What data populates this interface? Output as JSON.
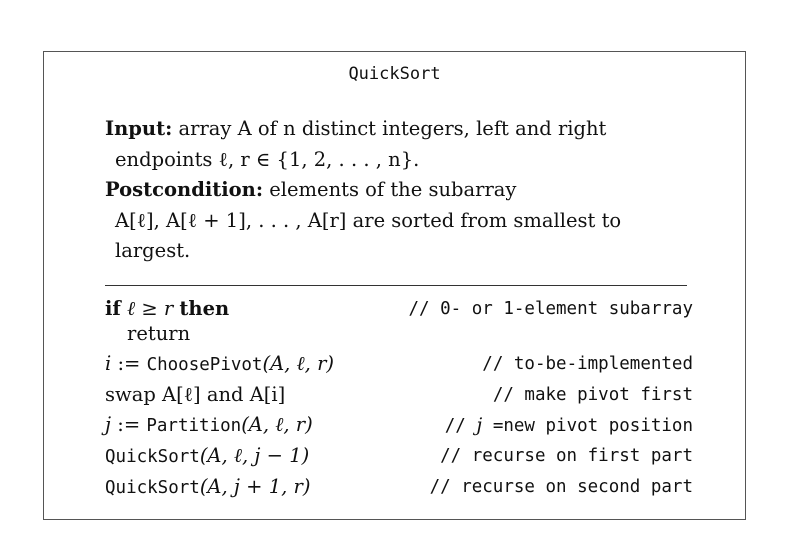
{
  "algorithm": {
    "title": "QuickSort",
    "input_label": "Input:",
    "input_text_1": "array A of n distinct integers, left and right",
    "input_text_2": "endpoints ℓ, r ∈ {1, 2, . . . , n}.",
    "post_label": "Postcondition:",
    "post_text_1": "elements of the subarray",
    "post_text_2": "A[ℓ], A[ℓ + 1], . . . , A[r] are sorted from smallest to",
    "post_text_3": "largest."
  },
  "code": {
    "kw_if": "if",
    "cond": "ℓ ≥ r",
    "kw_then": "then",
    "c1": "// 0- or 1-element subarray",
    "ret": "return",
    "l2_var": "i",
    "assign": " := ",
    "fn_choose": "ChoosePivot",
    "l2_args": "(A, ℓ, r)",
    "c2": "// to-be-implemented",
    "l3": "swap A[ℓ] and A[i]",
    "c3": "// make pivot first",
    "l4_var": "j",
    "fn_partition": "Partition",
    "l4_args": "(A, ℓ, r)",
    "c4_prefix": "// ",
    "c4_var": "j",
    "c4_text": " =new pivot position",
    "fn_quicksort": "QuickSort",
    "l5_args": "(A, ℓ, j − 1)",
    "c5": "// recurse on first part",
    "l6_args": "(A, j + 1, r)",
    "c6": "// recurse on second part"
  }
}
